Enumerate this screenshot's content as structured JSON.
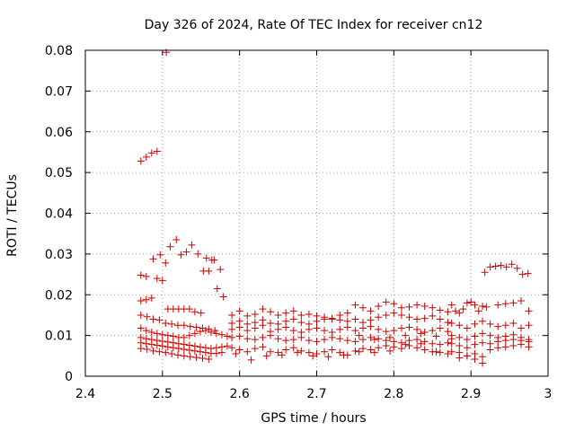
{
  "chart_data": {
    "type": "scatter",
    "title": "Day 326 of 2024, Rate Of TEC Index for receiver cn12",
    "xlabel": "GPS time / hours",
    "ylabel": "ROTI / TECUs",
    "xlim": [
      2.4,
      3.0
    ],
    "ylim": [
      0,
      0.08
    ],
    "xticks": [
      "2.4",
      "2.5",
      "2.6",
      "2.7",
      "2.8",
      "2.9",
      "3"
    ],
    "yticks": [
      "0",
      "0.01",
      "0.02",
      "0.03",
      "0.04",
      "0.05",
      "0.06",
      "0.07",
      "0.08"
    ],
    "grid": true,
    "marker": "+",
    "color": "#cc0000",
    "series": [
      {
        "name": "ROTI",
        "x": [
          2.472,
          2.479,
          2.486,
          2.493,
          2.505,
          2.472,
          2.479,
          2.488,
          2.497,
          2.504,
          2.51,
          2.518,
          2.524,
          2.531,
          2.538,
          2.546,
          2.553,
          2.56,
          2.567,
          2.575,
          2.472,
          2.479,
          2.486,
          2.493,
          2.5,
          2.507,
          2.514,
          2.521,
          2.528,
          2.535,
          2.542,
          2.55,
          2.557,
          2.564,
          2.571,
          2.579,
          2.472,
          2.48,
          2.488,
          2.496,
          2.504,
          2.512,
          2.52,
          2.528,
          2.536,
          2.544,
          2.552,
          2.56,
          2.568,
          2.472,
          2.479,
          2.486,
          2.493,
          2.5,
          2.507,
          2.514,
          2.521,
          2.528,
          2.535,
          2.542,
          2.549,
          2.556,
          2.563,
          2.57,
          2.577,
          2.584,
          2.472,
          2.479,
          2.486,
          2.493,
          2.5,
          2.507,
          2.514,
          2.521,
          2.528,
          2.535,
          2.542,
          2.549,
          2.556,
          2.563,
          2.57,
          2.577,
          2.584,
          2.472,
          2.479,
          2.486,
          2.493,
          2.5,
          2.507,
          2.514,
          2.521,
          2.528,
          2.535,
          2.542,
          2.549,
          2.556,
          2.563,
          2.57,
          2.577,
          2.472,
          2.48,
          2.488,
          2.496,
          2.504,
          2.512,
          2.52,
          2.528,
          2.536,
          2.544,
          2.552,
          2.56,
          2.59,
          2.6,
          2.61,
          2.62,
          2.63,
          2.64,
          2.65,
          2.66,
          2.67,
          2.68,
          2.69,
          2.7,
          2.71,
          2.72,
          2.73,
          2.74,
          2.75,
          2.76,
          2.77,
          2.78,
          2.79,
          2.8,
          2.81,
          2.82,
          2.83,
          2.84,
          2.85,
          2.86,
          2.87,
          2.59,
          2.6,
          2.61,
          2.62,
          2.63,
          2.64,
          2.65,
          2.66,
          2.67,
          2.68,
          2.69,
          2.7,
          2.71,
          2.72,
          2.73,
          2.74,
          2.75,
          2.76,
          2.77,
          2.78,
          2.79,
          2.8,
          2.81,
          2.82,
          2.83,
          2.84,
          2.85,
          2.86,
          2.87,
          2.59,
          2.6,
          2.61,
          2.62,
          2.63,
          2.64,
          2.65,
          2.66,
          2.67,
          2.68,
          2.69,
          2.7,
          2.71,
          2.72,
          2.73,
          2.74,
          2.75,
          2.76,
          2.77,
          2.78,
          2.79,
          2.8,
          2.81,
          2.82,
          2.83,
          2.84,
          2.85,
          2.86,
          2.87,
          2.59,
          2.6,
          2.61,
          2.62,
          2.63,
          2.64,
          2.65,
          2.66,
          2.67,
          2.68,
          2.69,
          2.7,
          2.71,
          2.72,
          2.73,
          2.74,
          2.75,
          2.76,
          2.77,
          2.78,
          2.79,
          2.8,
          2.81,
          2.82,
          2.83,
          2.84,
          2.85,
          2.86,
          2.87,
          2.59,
          2.6,
          2.61,
          2.62,
          2.63,
          2.64,
          2.65,
          2.66,
          2.67,
          2.68,
          2.69,
          2.7,
          2.71,
          2.72,
          2.73,
          2.74,
          2.75,
          2.76,
          2.77,
          2.78,
          2.79,
          2.8,
          2.81,
          2.82,
          2.83,
          2.84,
          2.85,
          2.86,
          2.87,
          2.595,
          2.615,
          2.635,
          2.655,
          2.675,
          2.695,
          2.715,
          2.735,
          2.755,
          2.775,
          2.795,
          2.815,
          2.835,
          2.855,
          2.755,
          2.775,
          2.795,
          2.815,
          2.835,
          2.855,
          2.875,
          2.875,
          2.88,
          2.885,
          2.89,
          2.895,
          2.9,
          2.905,
          2.91,
          2.915,
          2.92,
          2.875,
          2.885,
          2.895,
          2.905,
          2.915,
          2.925,
          2.935,
          2.945,
          2.955,
          2.965,
          2.975,
          2.875,
          2.885,
          2.895,
          2.905,
          2.915,
          2.925,
          2.935,
          2.945,
          2.955,
          2.965,
          2.975,
          2.875,
          2.885,
          2.895,
          2.905,
          2.915,
          2.925,
          2.935,
          2.945,
          2.955,
          2.965,
          2.975,
          2.875,
          2.885,
          2.895,
          2.905,
          2.915,
          2.925,
          2.935,
          2.945,
          2.955,
          2.965,
          2.975,
          2.918,
          2.925,
          2.932,
          2.939,
          2.946,
          2.953,
          2.96,
          2.967,
          2.974,
          2.935,
          2.945,
          2.955,
          2.965,
          2.975,
          2.885,
          2.895,
          2.905,
          2.915
        ],
        "y": [
          0.0528,
          0.0538,
          0.0548,
          0.0552,
          0.0795,
          0.0248,
          0.0245,
          0.0288,
          0.0298,
          0.0278,
          0.0318,
          0.0335,
          0.0298,
          0.0305,
          0.0322,
          0.03,
          0.0258,
          0.0258,
          0.0285,
          0.0262,
          0.0185,
          0.0188,
          0.0192,
          0.024,
          0.0235,
          0.0165,
          0.0165,
          0.0165,
          0.0165,
          0.0165,
          0.0158,
          0.0155,
          0.029,
          0.0285,
          0.0215,
          0.0195,
          0.015,
          0.0146,
          0.014,
          0.0138,
          0.013,
          0.0128,
          0.0125,
          0.0125,
          0.0122,
          0.012,
          0.0118,
          0.0116,
          0.0112,
          0.0118,
          0.0112,
          0.0108,
          0.0105,
          0.0102,
          0.01,
          0.0098,
          0.0095,
          0.0095,
          0.01,
          0.0105,
          0.011,
          0.0112,
          0.0108,
          0.0105,
          0.0102,
          0.0098,
          0.0095,
          0.0092,
          0.009,
          0.0088,
          0.0086,
          0.0084,
          0.0082,
          0.008,
          0.0078,
          0.0076,
          0.0074,
          0.0072,
          0.007,
          0.0068,
          0.007,
          0.0072,
          0.0074,
          0.0082,
          0.008,
          0.0078,
          0.0076,
          0.0074,
          0.0072,
          0.007,
          0.0068,
          0.0066,
          0.0064,
          0.0062,
          0.006,
          0.0058,
          0.0056,
          0.0056,
          0.0058,
          0.0068,
          0.0066,
          0.0062,
          0.006,
          0.0058,
          0.0055,
          0.0052,
          0.005,
          0.0048,
          0.0046,
          0.0044,
          0.0042,
          0.015,
          0.016,
          0.0148,
          0.0152,
          0.0165,
          0.0158,
          0.015,
          0.0155,
          0.016,
          0.015,
          0.0152,
          0.0148,
          0.0145,
          0.014,
          0.015,
          0.0155,
          0.0175,
          0.0168,
          0.016,
          0.0172,
          0.0182,
          0.0178,
          0.0168,
          0.017,
          0.0175,
          0.0172,
          0.0168,
          0.0162,
          0.0158,
          0.013,
          0.0135,
          0.0128,
          0.0132,
          0.0138,
          0.013,
          0.0128,
          0.0135,
          0.014,
          0.0132,
          0.0128,
          0.0135,
          0.014,
          0.0142,
          0.0138,
          0.0135,
          0.014,
          0.0132,
          0.0138,
          0.0145,
          0.015,
          0.0155,
          0.015,
          0.0145,
          0.014,
          0.0142,
          0.0148,
          0.014,
          0.0132,
          0.0115,
          0.012,
          0.0112,
          0.0118,
          0.0125,
          0.011,
          0.0115,
          0.012,
          0.0112,
          0.0108,
          0.0115,
          0.0118,
          0.0112,
          0.0108,
          0.0115,
          0.012,
          0.0112,
          0.0118,
          0.0122,
          0.0115,
          0.011,
          0.0112,
          0.0118,
          0.012,
          0.0115,
          0.0108,
          0.0112,
          0.0118,
          0.011,
          0.0095,
          0.0098,
          0.0092,
          0.009,
          0.0095,
          0.01,
          0.0092,
          0.0088,
          0.009,
          0.0095,
          0.0088,
          0.0085,
          0.009,
          0.0095,
          0.0092,
          0.0088,
          0.0085,
          0.009,
          0.0095,
          0.0092,
          0.0088,
          0.0085,
          0.0082,
          0.0088,
          0.009,
          0.0085,
          0.008,
          0.0078,
          0.0082,
          0.007,
          0.0065,
          0.006,
          0.0068,
          0.0072,
          0.006,
          0.0058,
          0.0065,
          0.007,
          0.0062,
          0.0058,
          0.0055,
          0.006,
          0.0065,
          0.0058,
          0.0052,
          0.0062,
          0.0068,
          0.0065,
          0.007,
          0.0075,
          0.0072,
          0.0068,
          0.0075,
          0.007,
          0.0065,
          0.006,
          0.0058,
          0.0055,
          0.0055,
          0.004,
          0.005,
          0.0052,
          0.0058,
          0.005,
          0.0048,
          0.0052,
          0.006,
          0.0058,
          0.0062,
          0.0078,
          0.008,
          0.006,
          0.01,
          0.009,
          0.0095,
          0.01,
          0.0105,
          0.0098,
          0.0092,
          0.0175,
          0.016,
          0.0155,
          0.0165,
          0.018,
          0.0182,
          0.0175,
          0.016,
          0.0172,
          0.017,
          0.013,
          0.0125,
          0.0118,
          0.0128,
          0.0135,
          0.0128,
          0.0122,
          0.0125,
          0.013,
          0.0118,
          0.0125,
          0.01,
          0.0095,
          0.009,
          0.0098,
          0.0105,
          0.01,
          0.0095,
          0.0098,
          0.0102,
          0.0095,
          0.009,
          0.008,
          0.0075,
          0.007,
          0.0078,
          0.0082,
          0.008,
          0.0085,
          0.0088,
          0.009,
          0.0088,
          0.0085,
          0.006,
          0.0058,
          0.005,
          0.0055,
          0.0032,
          0.0065,
          0.007,
          0.0072,
          0.0075,
          0.0078,
          0.0072,
          0.0255,
          0.0268,
          0.027,
          0.0272,
          0.0268,
          0.0275,
          0.0265,
          0.025,
          0.0252,
          0.0175,
          0.0178,
          0.018,
          0.0185,
          0.016,
          0.0045,
          0.005,
          0.0042,
          0.0048
        ]
      }
    ]
  }
}
